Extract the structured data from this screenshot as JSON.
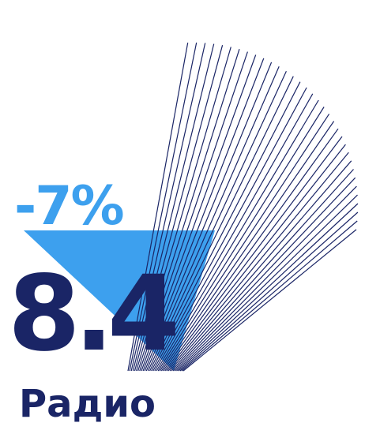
{
  "graphic": {
    "change_text": "-7%",
    "value_text": "8.4",
    "label_text": "Радио",
    "colors": {
      "navy": "#1a2566",
      "light_blue": "#3da0ee"
    }
  }
}
